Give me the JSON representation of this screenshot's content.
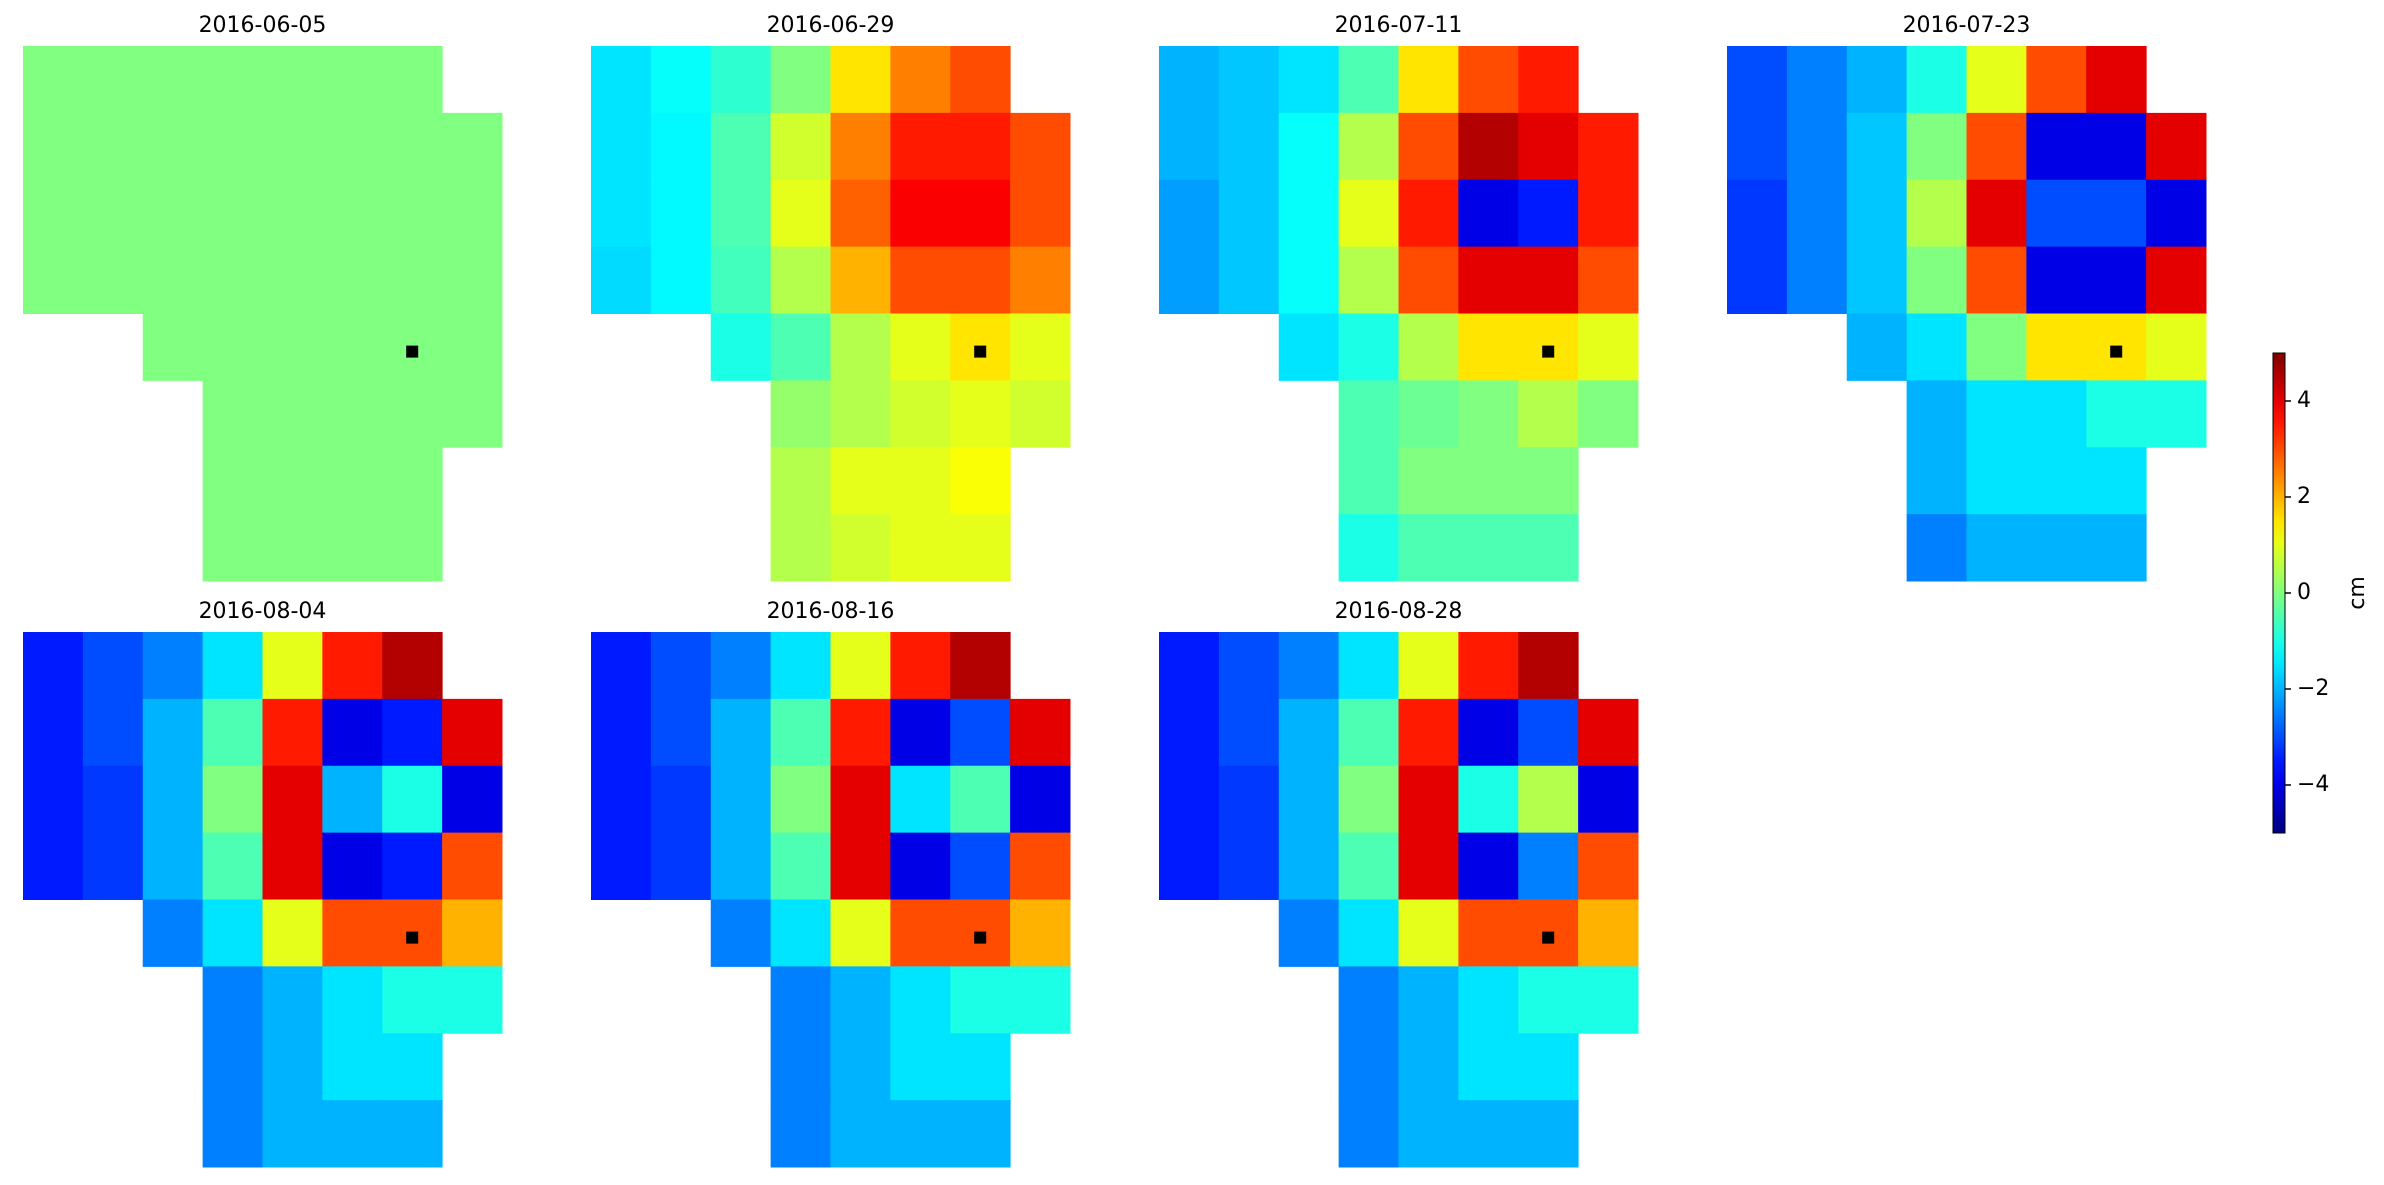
{
  "chart_data": {
    "type": "heatmap",
    "colormap": "jet",
    "clim": [
      -5,
      5
    ],
    "panels": [
      {
        "title": "2016-06-05",
        "values": [
          [
            0,
            0,
            0,
            0,
            0,
            0,
            0,
            null
          ],
          [
            0,
            0,
            0,
            0,
            0,
            0,
            0,
            0
          ],
          [
            0,
            0,
            0,
            0,
            0,
            0,
            0,
            0
          ],
          [
            0,
            0,
            0,
            0,
            0,
            0,
            0,
            0
          ],
          [
            null,
            null,
            0,
            0,
            0,
            0,
            0,
            0
          ],
          [
            null,
            null,
            null,
            0,
            0,
            0,
            0,
            0
          ],
          [
            null,
            null,
            null,
            0,
            0,
            0,
            0,
            null
          ],
          [
            null,
            null,
            null,
            0,
            0,
            0,
            0,
            null
          ]
        ]
      },
      {
        "title": "2016-06-29",
        "values": [
          [
            -1.5,
            -1.2,
            -0.8,
            0,
            1.5,
            2.5,
            3,
            null
          ],
          [
            -1.5,
            -1.3,
            -0.5,
            0.8,
            2.5,
            3.5,
            3.5,
            3
          ],
          [
            -1.5,
            -1.3,
            -0.5,
            1,
            2.8,
            3.8,
            3.8,
            3
          ],
          [
            -1.6,
            -1.3,
            -0.6,
            0.5,
            2,
            3,
            3,
            2.5
          ],
          [
            null,
            null,
            -1,
            -0.5,
            0.5,
            1,
            1.5,
            1
          ],
          [
            null,
            null,
            null,
            0.2,
            0.5,
            0.8,
            1,
            0.8
          ],
          [
            null,
            null,
            null,
            0.5,
            1,
            1,
            1.2,
            null
          ],
          [
            null,
            null,
            null,
            0.5,
            0.8,
            1,
            1,
            null
          ]
        ]
      },
      {
        "title": "2016-07-11",
        "values": [
          [
            -2,
            -1.8,
            -1.5,
            -0.5,
            1.5,
            3,
            3.5,
            null
          ],
          [
            -2,
            -1.8,
            -1.2,
            0.5,
            3,
            4.5,
            4,
            3.5
          ],
          [
            -2.2,
            -1.8,
            -1.2,
            1,
            3.5,
            -4,
            -3.5,
            3.5
          ],
          [
            -2.2,
            -1.8,
            -1.2,
            0.5,
            3,
            4,
            4,
            3
          ],
          [
            null,
            null,
            -1.5,
            -1,
            0.5,
            1.5,
            1.5,
            1
          ],
          [
            null,
            null,
            null,
            -0.5,
            -0.2,
            0,
            0.5,
            0
          ],
          [
            null,
            null,
            null,
            -0.5,
            0,
            0,
            0,
            null
          ],
          [
            null,
            null,
            null,
            -1,
            -0.5,
            -0.5,
            -0.5,
            null
          ]
        ]
      },
      {
        "title": "2016-07-23",
        "values": [
          [
            -3,
            -2.5,
            -2,
            -1,
            1,
            3,
            4,
            null
          ],
          [
            -3,
            -2.5,
            -1.8,
            0,
            3,
            -4,
            -4,
            4
          ],
          [
            -3.2,
            -2.5,
            -1.8,
            0.5,
            4,
            -3,
            -3,
            -4
          ],
          [
            -3.2,
            -2.5,
            -1.8,
            0,
            3,
            -4,
            -4,
            4
          ],
          [
            null,
            null,
            -2,
            -1.5,
            0,
            1.5,
            1.5,
            1
          ],
          [
            null,
            null,
            null,
            -2,
            -1.5,
            -1.5,
            -1,
            -1
          ],
          [
            null,
            null,
            null,
            -2,
            -1.5,
            -1.5,
            -1.5,
            null
          ],
          [
            null,
            null,
            null,
            -2.5,
            -2,
            -2,
            -2,
            null
          ]
        ]
      },
      {
        "title": "2016-08-04",
        "values": [
          [
            -3.5,
            -3,
            -2.5,
            -1.5,
            1,
            3.5,
            4.5,
            null
          ],
          [
            -3.5,
            -3,
            -2,
            -0.5,
            3.5,
            -4,
            -3.5,
            4
          ],
          [
            -3.5,
            -3.2,
            -2,
            0,
            4,
            -2,
            -1,
            -4
          ],
          [
            -3.5,
            -3.2,
            -2,
            -0.5,
            4,
            -4,
            -3.5,
            3
          ],
          [
            null,
            null,
            -2.5,
            -1.5,
            1,
            3,
            3,
            2
          ],
          [
            null,
            null,
            null,
            -2.5,
            -2,
            -1.5,
            -1,
            -1
          ],
          [
            null,
            null,
            null,
            -2.5,
            -2,
            -1.5,
            -1.5,
            null
          ],
          [
            null,
            null,
            null,
            -2.5,
            -2,
            -2,
            -2,
            null
          ]
        ]
      },
      {
        "title": "2016-08-16",
        "values": [
          [
            -3.5,
            -3,
            -2.5,
            -1.5,
            1,
            3.5,
            4.5,
            null
          ],
          [
            -3.5,
            -3,
            -2,
            -0.5,
            3.5,
            -4,
            -3,
            4
          ],
          [
            -3.5,
            -3.2,
            -2,
            0,
            4,
            -1.5,
            -0.5,
            -4
          ],
          [
            -3.5,
            -3.2,
            -2,
            -0.5,
            4,
            -4,
            -3,
            3
          ],
          [
            null,
            null,
            -2.5,
            -1.5,
            1,
            3,
            3,
            2
          ],
          [
            null,
            null,
            null,
            -2.5,
            -2,
            -1.5,
            -1,
            -1
          ],
          [
            null,
            null,
            null,
            -2.5,
            -2,
            -1.5,
            -1.5,
            null
          ],
          [
            null,
            null,
            null,
            -2.5,
            -2,
            -2,
            -2,
            null
          ]
        ]
      },
      {
        "title": "2016-08-28",
        "values": [
          [
            -3.5,
            -3,
            -2.5,
            -1.5,
            1,
            3.5,
            4.5,
            null
          ],
          [
            -3.5,
            -3,
            -2,
            -0.5,
            3.5,
            -4,
            -3,
            4
          ],
          [
            -3.5,
            -3.2,
            -2,
            0,
            4,
            -1,
            0.5,
            -4
          ],
          [
            -3.5,
            -3.2,
            -2,
            -0.5,
            4,
            -4,
            -2.5,
            3
          ],
          [
            null,
            null,
            -2.5,
            -1.5,
            1,
            3,
            3,
            2
          ],
          [
            null,
            null,
            null,
            -2.5,
            -2,
            -1.5,
            -1,
            -1
          ],
          [
            null,
            null,
            null,
            -2.5,
            -2,
            -1.5,
            -1.5,
            null
          ],
          [
            null,
            null,
            null,
            -2.5,
            -2,
            -2,
            -2,
            null
          ]
        ]
      }
    ],
    "colorbar": {
      "label": "cm",
      "ticks": [
        {
          "value": -4,
          "label": "−4"
        },
        {
          "value": -2,
          "label": "−2"
        },
        0,
        2,
        4
      ]
    }
  }
}
